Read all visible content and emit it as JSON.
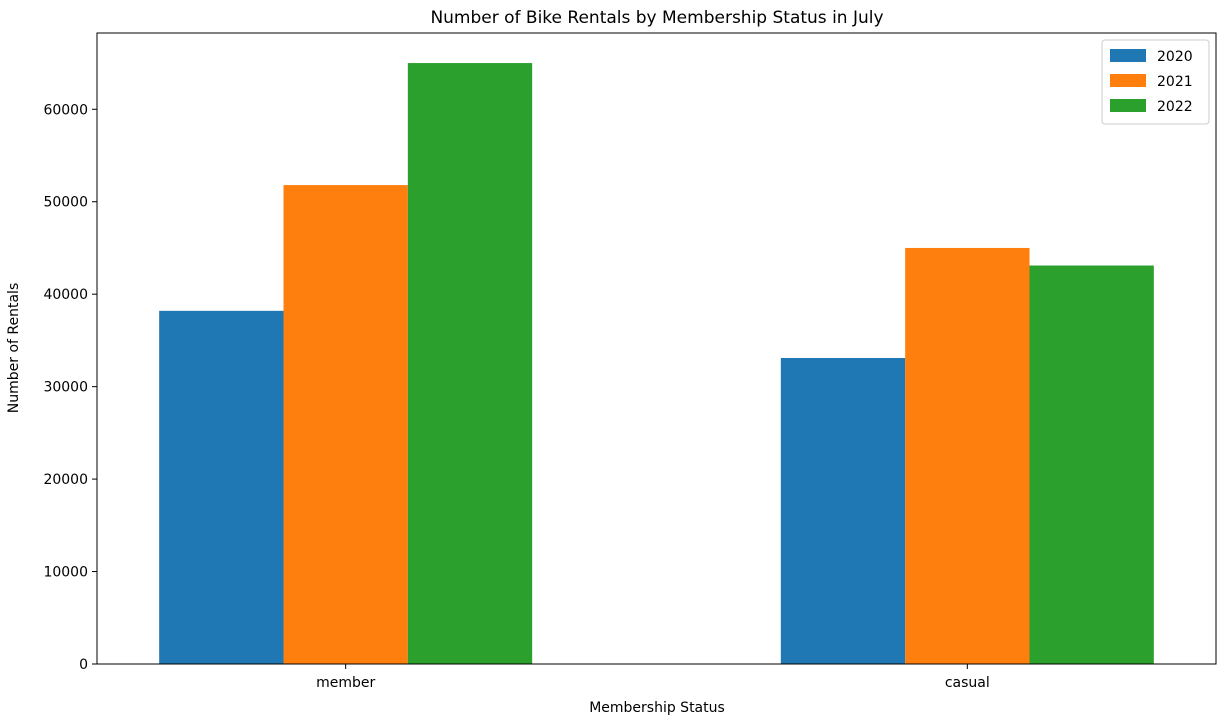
{
  "chart_data": {
    "type": "bar",
    "title": "Number of Bike Rentals by Membership Status in July",
    "xlabel": "Membership Status",
    "ylabel": "Number of Rentals",
    "categories": [
      "member",
      "casual"
    ],
    "series": [
      {
        "name": "2020",
        "values": [
          38200,
          33100
        ],
        "color": "#1f77b4"
      },
      {
        "name": "2021",
        "values": [
          51800,
          45000
        ],
        "color": "#ff7f0e"
      },
      {
        "name": "2022",
        "values": [
          65000,
          43100
        ],
        "color": "#2ca02c"
      }
    ],
    "ylim": [
      0,
      68250
    ],
    "yticks": [
      0,
      10000,
      20000,
      30000,
      40000,
      50000,
      60000
    ],
    "ytick_labels": [
      "0",
      "10000",
      "20000",
      "30000",
      "40000",
      "50000",
      "60000"
    ],
    "legend_position": "top-right",
    "grid": false
  }
}
